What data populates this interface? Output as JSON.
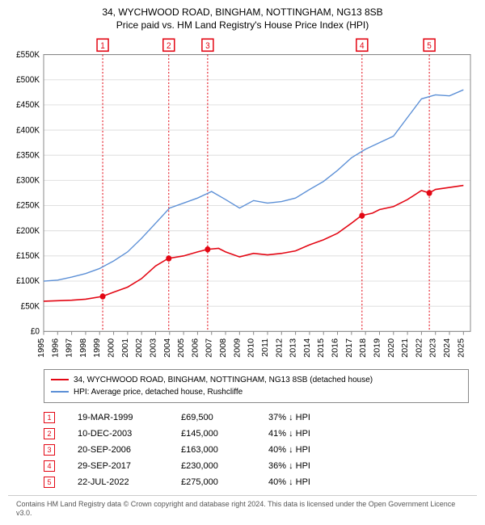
{
  "title": "34, WYCHWOOD ROAD, BINGHAM, NOTTINGHAM, NG13 8SB",
  "subtitle": "Price paid vs. HM Land Registry's House Price Index (HPI)",
  "chart": {
    "type": "line",
    "background_color": "#ffffff",
    "grid_color": "#e0e0e0",
    "axis_color": "#888888",
    "label_fontsize": 10,
    "title_fontsize": 12,
    "x_years": [
      1995,
      1996,
      1997,
      1998,
      1999,
      2000,
      2001,
      2002,
      2003,
      2004,
      2005,
      2006,
      2007,
      2008,
      2009,
      2010,
      2011,
      2012,
      2013,
      2014,
      2015,
      2016,
      2017,
      2018,
      2019,
      2020,
      2021,
      2022,
      2023,
      2024,
      2025
    ],
    "xlim": [
      1995,
      2025.5
    ],
    "y_ticks": [
      0,
      50000,
      100000,
      150000,
      200000,
      250000,
      300000,
      350000,
      400000,
      450000,
      500000,
      550000
    ],
    "y_tick_labels": [
      "£0",
      "£50K",
      "£100K",
      "£150K",
      "£200K",
      "£250K",
      "£300K",
      "£350K",
      "£400K",
      "£450K",
      "£500K",
      "£550K"
    ],
    "ylim": [
      0,
      550000
    ],
    "series": [
      {
        "name": "property",
        "label": "34, WYCHWOOD ROAD, BINGHAM, NOTTINGHAM, NG13 8SB (detached house)",
        "color": "#e30613",
        "line_width": 1.5,
        "points": [
          [
            1995,
            60000
          ],
          [
            1996,
            61000
          ],
          [
            1997,
            62000
          ],
          [
            1998,
            64000
          ],
          [
            1999.2,
            69500
          ],
          [
            2000,
            78000
          ],
          [
            2001,
            88000
          ],
          [
            2002,
            105000
          ],
          [
            2003,
            130000
          ],
          [
            2003.9,
            145000
          ],
          [
            2005,
            150000
          ],
          [
            2006,
            158000
          ],
          [
            2006.7,
            163000
          ],
          [
            2007.5,
            165000
          ],
          [
            2008,
            158000
          ],
          [
            2009,
            148000
          ],
          [
            2010,
            155000
          ],
          [
            2011,
            152000
          ],
          [
            2012,
            155000
          ],
          [
            2013,
            160000
          ],
          [
            2014,
            172000
          ],
          [
            2015,
            182000
          ],
          [
            2016,
            195000
          ],
          [
            2017,
            215000
          ],
          [
            2017.7,
            230000
          ],
          [
            2018.5,
            235000
          ],
          [
            2019,
            242000
          ],
          [
            2020,
            248000
          ],
          [
            2021,
            262000
          ],
          [
            2022,
            280000
          ],
          [
            2022.55,
            275000
          ],
          [
            2023,
            282000
          ],
          [
            2024,
            286000
          ],
          [
            2025,
            290000
          ]
        ]
      },
      {
        "name": "hpi",
        "label": "HPI: Average price, detached house, Rushcliffe",
        "color": "#5b8fd6",
        "line_width": 1.3,
        "points": [
          [
            1995,
            100000
          ],
          [
            1996,
            102000
          ],
          [
            1997,
            108000
          ],
          [
            1998,
            115000
          ],
          [
            1999,
            125000
          ],
          [
            2000,
            140000
          ],
          [
            2001,
            158000
          ],
          [
            2002,
            185000
          ],
          [
            2003,
            215000
          ],
          [
            2004,
            245000
          ],
          [
            2005,
            255000
          ],
          [
            2006,
            265000
          ],
          [
            2007,
            278000
          ],
          [
            2008,
            262000
          ],
          [
            2009,
            245000
          ],
          [
            2010,
            260000
          ],
          [
            2011,
            255000
          ],
          [
            2012,
            258000
          ],
          [
            2013,
            265000
          ],
          [
            2014,
            282000
          ],
          [
            2015,
            298000
          ],
          [
            2016,
            320000
          ],
          [
            2017,
            345000
          ],
          [
            2018,
            362000
          ],
          [
            2019,
            375000
          ],
          [
            2020,
            388000
          ],
          [
            2021,
            425000
          ],
          [
            2022,
            462000
          ],
          [
            2023,
            470000
          ],
          [
            2024,
            468000
          ],
          [
            2025,
            480000
          ]
        ]
      }
    ],
    "markers": [
      {
        "n": "1",
        "year": 1999.22,
        "date": "19-MAR-1999",
        "price_val": 69500,
        "price": "£69,500",
        "pct": "37% ↓ HPI",
        "color": "#e30613"
      },
      {
        "n": "2",
        "year": 2003.94,
        "date": "10-DEC-2003",
        "price_val": 145000,
        "price": "£145,000",
        "pct": "41% ↓ HPI",
        "color": "#e30613"
      },
      {
        "n": "3",
        "year": 2006.72,
        "date": "20-SEP-2006",
        "price_val": 163000,
        "price": "£163,000",
        "pct": "40% ↓ HPI",
        "color": "#e30613"
      },
      {
        "n": "4",
        "year": 2017.75,
        "date": "29-SEP-2017",
        "price_val": 230000,
        "price": "£230,000",
        "pct": "36% ↓ HPI",
        "color": "#e30613"
      },
      {
        "n": "5",
        "year": 2022.56,
        "date": "22-JUL-2022",
        "price_val": 275000,
        "price": "£275,000",
        "pct": "40% ↓ HPI",
        "color": "#e30613"
      }
    ]
  },
  "footer": "Contains HM Land Registry data © Crown copyright and database right 2024. This data is licensed under the Open Government Licence v3.0."
}
